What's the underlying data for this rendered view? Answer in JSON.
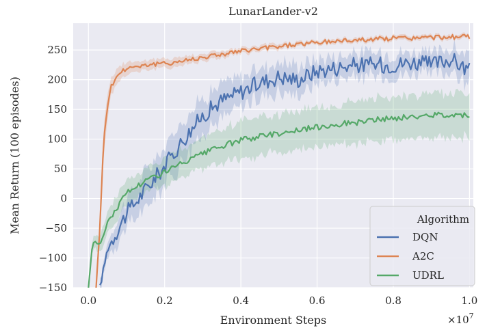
{
  "chart_data": {
    "type": "line",
    "title": "LunarLander-v2",
    "xlabel": "Environment Steps",
    "ylabel": "Mean Return (100 episodes)",
    "x_multiplier_label": "×10",
    "x_multiplier_exponent": "7",
    "xlim": [
      -0.04,
      1.01
    ],
    "ylim": [
      -150,
      295
    ],
    "x_ticks": [
      0.0,
      0.2,
      0.4,
      0.6,
      0.8,
      1.0
    ],
    "x_tick_labels": [
      "0.0",
      "0.2",
      "0.4",
      "0.6",
      "0.8",
      "1.0"
    ],
    "y_ticks": [
      -150,
      -100,
      -50,
      0,
      50,
      100,
      150,
      200,
      250
    ],
    "y_tick_labels": [
      "−150",
      "−100",
      "−50",
      "0",
      "50",
      "100",
      "150",
      "200",
      "250"
    ],
    "grid": true,
    "legend": {
      "title": "Algorithm",
      "placement": "bottom-right"
    },
    "series": [
      {
        "name": "DQN",
        "color": "#4c72b0",
        "x": [
          0.03,
          0.05,
          0.07,
          0.1,
          0.15,
          0.2,
          0.25,
          0.3,
          0.35,
          0.4,
          0.45,
          0.5,
          0.55,
          0.6,
          0.65,
          0.7,
          0.75,
          0.8,
          0.85,
          0.9,
          0.95,
          1.0
        ],
        "y": [
          -150,
          -85,
          -60,
          -25,
          15,
          55,
          100,
          140,
          165,
          180,
          195,
          205,
          200,
          215,
          220,
          225,
          225,
          225,
          230,
          225,
          235,
          215
        ],
        "band": [
          10,
          12,
          18,
          25,
          30,
          30,
          35,
          30,
          28,
          25,
          25,
          25,
          25,
          20,
          20,
          20,
          20,
          20,
          18,
          18,
          20,
          25
        ]
      },
      {
        "name": "A2C",
        "color": "#dd8452",
        "x": [
          0.02,
          0.03,
          0.04,
          0.05,
          0.06,
          0.08,
          0.1,
          0.15,
          0.2,
          0.25,
          0.3,
          0.35,
          0.4,
          0.45,
          0.5,
          0.55,
          0.6,
          0.65,
          0.7,
          0.75,
          0.8,
          0.85,
          0.9,
          0.95,
          1.0
        ],
        "y": [
          -150,
          -50,
          100,
          155,
          190,
          210,
          220,
          225,
          227,
          232,
          238,
          243,
          248,
          252,
          256,
          260,
          262,
          265,
          267,
          268,
          270,
          270,
          271,
          272,
          272
        ],
        "band": [
          10,
          20,
          25,
          20,
          15,
          12,
          10,
          8,
          8,
          7,
          6,
          6,
          5,
          5,
          5,
          4,
          4,
          4,
          4,
          4,
          4,
          4,
          4,
          4,
          4
        ]
      },
      {
        "name": "UDRL",
        "color": "#55a868",
        "x": [
          0.0,
          0.01,
          0.015,
          0.03,
          0.05,
          0.1,
          0.15,
          0.2,
          0.25,
          0.3,
          0.35,
          0.4,
          0.45,
          0.5,
          0.55,
          0.6,
          0.65,
          0.7,
          0.75,
          0.8,
          0.85,
          0.9,
          0.95,
          1.0
        ],
        "y": [
          -150,
          -80,
          -70,
          -80,
          -40,
          10,
          30,
          45,
          60,
          75,
          88,
          98,
          105,
          110,
          115,
          120,
          125,
          128,
          132,
          135,
          137,
          140,
          142,
          140
        ],
        "band": [
          5,
          10,
          10,
          15,
          20,
          20,
          20,
          25,
          25,
          28,
          30,
          30,
          32,
          32,
          33,
          33,
          33,
          34,
          35,
          35,
          35,
          36,
          36,
          36
        ]
      }
    ]
  }
}
